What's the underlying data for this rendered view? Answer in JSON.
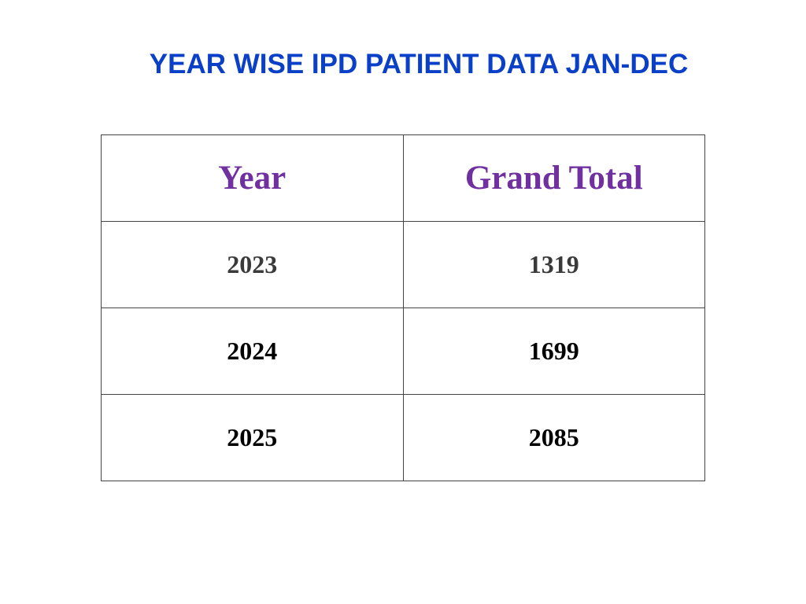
{
  "title": "YEAR WISE IPD PATIENT DATA JAN-DEC",
  "table": {
    "headers": [
      "Year",
      "Grand Total"
    ],
    "rows": [
      [
        "2023",
        "1319"
      ],
      [
        "2024",
        "1699"
      ],
      [
        "2025",
        "2085"
      ]
    ]
  },
  "colors": {
    "title": "#0a3fc8",
    "header_text": "#7030a0",
    "body_text": "#000000",
    "border": "#444444"
  }
}
